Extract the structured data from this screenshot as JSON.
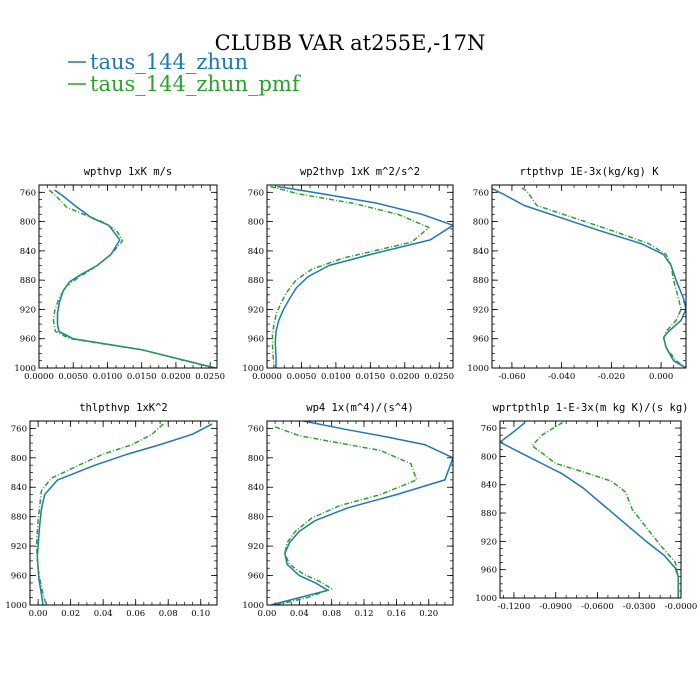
{
  "title": "CLUBB VAR at255E,-17N",
  "legend": {
    "placement": "top-left",
    "entries": [
      {
        "name": "taus_144_zhun",
        "color": "#1f77b4",
        "style": "solid"
      },
      {
        "name": "taus_144_zhun_pmf",
        "color": "#2ca02c",
        "style": "dashed"
      }
    ]
  },
  "chart_data": [
    {
      "type": "line",
      "title": "wpthvp  1xK m/s",
      "xlim": [
        0,
        0.026
      ],
      "ylim": [
        1000,
        750
      ],
      "xticks": [
        0,
        0.005,
        0.01,
        0.015,
        0.02,
        0.025
      ],
      "xtick_labels": [
        "0.0000",
        "0.0050",
        "0.0100",
        "0.0150",
        "0.0200",
        "0.0250"
      ],
      "yticks": [
        760,
        800,
        840,
        880,
        920,
        960,
        1000
      ],
      "series": [
        {
          "name": "taus_144_zhun",
          "color": "#1f77b4",
          "style": "solid",
          "x": [
            0.0023,
            0.0035,
            0.0055,
            0.0077,
            0.0102,
            0.0118,
            0.0105,
            0.0085,
            0.0062,
            0.0045,
            0.0035,
            0.003,
            0.0027,
            0.0027,
            0.0029,
            0.005,
            0.015,
            0.0258
          ],
          "y": [
            757,
            765,
            780,
            795,
            805,
            825,
            845,
            860,
            872,
            882,
            895,
            910,
            925,
            940,
            950,
            960,
            975,
            1000
          ]
        },
        {
          "name": "taus_144_zhun_pmf",
          "color": "#2ca02c",
          "style": "dashed",
          "x": [
            0.0015,
            0.0025,
            0.004,
            0.0065,
            0.0092,
            0.0113,
            0.0122,
            0.0105,
            0.0082,
            0.0058,
            0.004,
            0.0029,
            0.0023,
            0.0021,
            0.0024,
            0.0045,
            0.015,
            0.0255
          ],
          "y": [
            757,
            765,
            780,
            790,
            800,
            812,
            826,
            845,
            862,
            876,
            888,
            905,
            922,
            935,
            950,
            960,
            975,
            1000
          ]
        }
      ]
    },
    {
      "type": "line",
      "title": "wp2thvp  1xK m^2/s^2",
      "xlim": [
        0,
        0.027
      ],
      "ylim": [
        1000,
        750
      ],
      "xticks": [
        0,
        0.005,
        0.01,
        0.015,
        0.02,
        0.025
      ],
      "xtick_labels": [
        "0.0000",
        "0.0050",
        "0.0100",
        "0.0150",
        "0.0200",
        "0.0250"
      ],
      "yticks": [
        760,
        800,
        840,
        880,
        920,
        960,
        1000
      ],
      "series": [
        {
          "name": "taus_144_zhun",
          "color": "#1f77b4",
          "style": "solid",
          "x": [
            0.0015,
            0.008,
            0.016,
            0.0225,
            0.027,
            0.0237,
            0.015,
            0.009,
            0.006,
            0.0043,
            0.0033,
            0.0024,
            0.0017,
            0.0013,
            0.0012,
            0.0013,
            0.0013
          ],
          "y": [
            752,
            762,
            775,
            790,
            805,
            825,
            845,
            860,
            875,
            890,
            905,
            920,
            935,
            950,
            965,
            985,
            1000
          ]
        },
        {
          "name": "taus_144_zhun_pmf",
          "color": "#2ca02c",
          "style": "dashed",
          "x": [
            0.0005,
            0.0045,
            0.0125,
            0.019,
            0.0235,
            0.021,
            0.011,
            0.0065,
            0.0042,
            0.003,
            0.0021,
            0.0014,
            0.001,
            0.0008,
            0.0008,
            0.0009,
            0.001
          ],
          "y": [
            752,
            762,
            775,
            790,
            808,
            828,
            850,
            865,
            880,
            895,
            910,
            925,
            940,
            955,
            970,
            985,
            1000
          ]
        }
      ]
    },
    {
      "type": "line",
      "title": "rtpthvp  1E-3x(kg/kg) K",
      "xlim": [
        -0.068,
        0.01
      ],
      "ylim": [
        1000,
        750
      ],
      "xticks": [
        -0.06,
        -0.04,
        -0.02,
        0
      ],
      "xtick_labels": [
        "-0.060",
        "-0.040",
        "-0.020",
        "0.000"
      ],
      "yticks": [
        760,
        800,
        840,
        880,
        920,
        960,
        1000
      ],
      "series": [
        {
          "name": "taus_144_zhun",
          "color": "#1f77b4",
          "style": "solid",
          "x": [
            -0.0685,
            -0.062,
            -0.055,
            -0.04,
            -0.025,
            -0.008,
            0.001,
            0.004,
            0.006,
            0.009,
            0.01,
            0.008,
            0.003,
            0.001,
            0.002,
            0.005,
            0.01
          ],
          "y": [
            754,
            765,
            778,
            795,
            812,
            830,
            845,
            860,
            880,
            905,
            920,
            935,
            950,
            958,
            972,
            990,
            1000
          ]
        },
        {
          "name": "taus_144_zhun_pmf",
          "color": "#2ca02c",
          "style": "dashed",
          "x": [
            -0.056,
            -0.054,
            -0.05,
            -0.035,
            -0.02,
            -0.005,
            0.002,
            0.004,
            0.005,
            0.007,
            0.008,
            0.006,
            0.002,
            0.001,
            0.002,
            0.006,
            0.01
          ],
          "y": [
            754,
            758,
            778,
            795,
            812,
            830,
            845,
            860,
            880,
            905,
            920,
            935,
            950,
            960,
            972,
            990,
            1000
          ]
        }
      ]
    },
    {
      "type": "line",
      "title": "thlpthvp  1xK^2",
      "xlim": [
        -0.005,
        0.11
      ],
      "ylim": [
        1000,
        750
      ],
      "xticks": [
        0,
        0.02,
        0.04,
        0.06,
        0.08,
        0.1
      ],
      "xtick_labels": [
        "0.00",
        "0.02",
        "0.04",
        "0.06",
        "0.08",
        "0.10"
      ],
      "yticks": [
        760,
        800,
        840,
        880,
        920,
        960,
        1000
      ],
      "series": [
        {
          "name": "taus_144_zhun",
          "color": "#1f77b4",
          "style": "solid",
          "x": [
            0.107,
            0.095,
            0.075,
            0.055,
            0.035,
            0.012,
            0.004,
            0.002,
            0.001,
            0.0005,
            0.0,
            -0.0005,
            0.0,
            0.0005,
            0.002,
            0.003
          ],
          "y": [
            754,
            768,
            782,
            795,
            810,
            830,
            850,
            870,
            890,
            905,
            920,
            935,
            950,
            965,
            985,
            1000
          ]
        },
        {
          "name": "taus_144_zhun_pmf",
          "color": "#2ca02c",
          "style": "dashed",
          "x": [
            0.077,
            0.07,
            0.058,
            0.04,
            0.025,
            0.008,
            0.002,
            0.001,
            0.0,
            -0.0005,
            -0.001,
            -0.0005,
            0.0,
            0.001,
            0.003,
            0.005
          ],
          "y": [
            754,
            768,
            782,
            795,
            810,
            828,
            845,
            865,
            885,
            900,
            920,
            935,
            950,
            965,
            985,
            1000
          ]
        }
      ]
    },
    {
      "type": "line",
      "title": "wp4  1x(m^4)/(s^4)",
      "xlim": [
        0,
        0.23
      ],
      "ylim": [
        1000,
        750
      ],
      "xticks": [
        0,
        0.04,
        0.08,
        0.12,
        0.16,
        0.2
      ],
      "xtick_labels": [
        "0.00",
        "0.04",
        "0.08",
        "0.12",
        "0.16",
        "0.20"
      ],
      "yticks": [
        760,
        800,
        840,
        880,
        920,
        960,
        1000
      ],
      "series": [
        {
          "name": "taus_144_zhun",
          "color": "#1f77b4",
          "style": "solid",
          "x": [
            0.045,
            0.1,
            0.15,
            0.195,
            0.23,
            0.22,
            0.16,
            0.1,
            0.06,
            0.04,
            0.028,
            0.022,
            0.025,
            0.04,
            0.06,
            0.075,
            0.04,
            0.005
          ],
          "y": [
            750,
            762,
            772,
            782,
            800,
            830,
            850,
            868,
            885,
            900,
            915,
            930,
            945,
            960,
            970,
            980,
            990,
            1000
          ]
        },
        {
          "name": "taus_144_zhun_pmf",
          "color": "#2ca02c",
          "style": "dashed",
          "x": [
            0.01,
            0.04,
            0.09,
            0.14,
            0.178,
            0.185,
            0.14,
            0.09,
            0.055,
            0.035,
            0.025,
            0.022,
            0.028,
            0.045,
            0.065,
            0.08,
            0.05,
            0.01
          ],
          "y": [
            758,
            770,
            780,
            790,
            808,
            830,
            850,
            865,
            882,
            900,
            915,
            930,
            945,
            958,
            968,
            978,
            990,
            1000
          ]
        }
      ]
    },
    {
      "type": "line",
      "title": "wprtpthlp  1-E-3x(m kg K)/(s kg)",
      "xlim": [
        -0.13,
        0.0
      ],
      "ylim": [
        1000,
        750
      ],
      "xticks": [
        -0.12,
        -0.09,
        -0.06,
        -0.03,
        0
      ],
      "xtick_labels": [
        "-0.1200",
        "-0.0900",
        "-0.0600",
        "-0.0300",
        "-0.0000"
      ],
      "yticks": [
        760,
        800,
        840,
        880,
        920,
        960,
        1000
      ],
      "series": [
        {
          "name": "taus_144_zhun",
          "color": "#1f77b4",
          "style": "solid",
          "x": [
            -0.112,
            -0.12,
            -0.13,
            -0.115,
            -0.1,
            -0.085,
            -0.07,
            -0.055,
            -0.04,
            -0.025,
            -0.012,
            -0.004,
            -0.002,
            -0.002,
            -0.002
          ],
          "y": [
            752,
            765,
            780,
            795,
            810,
            825,
            845,
            870,
            895,
            920,
            940,
            958,
            970,
            985,
            1000
          ]
        },
        {
          "name": "taus_144_zhun_pmf",
          "color": "#2ca02c",
          "style": "dashed",
          "x": [
            -0.085,
            -0.1,
            -0.107,
            -0.1,
            -0.09,
            -0.07,
            -0.05,
            -0.04,
            -0.035,
            -0.025,
            -0.015,
            -0.004,
            -0.002,
            -0.002,
            -0.002
          ],
          "y": [
            752,
            770,
            785,
            795,
            810,
            822,
            835,
            850,
            875,
            900,
            925,
            950,
            970,
            985,
            1000
          ]
        }
      ]
    }
  ]
}
